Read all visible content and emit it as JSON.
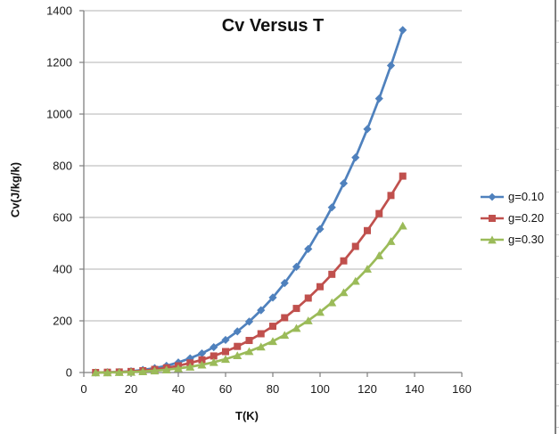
{
  "chart_data": {
    "type": "line",
    "title": "Cv Versus T",
    "xlabel": "T(K)",
    "ylabel": "Cv(J/kg/k)",
    "xlim": [
      0,
      160
    ],
    "ylim": [
      0,
      1400
    ],
    "x_ticks": [
      0,
      20,
      40,
      60,
      80,
      100,
      120,
      140,
      160
    ],
    "y_ticks": [
      0,
      200,
      400,
      600,
      800,
      1000,
      1200,
      1400
    ],
    "grid": "horizontal",
    "legend_position": "right",
    "x": [
      5,
      10,
      15,
      20,
      25,
      30,
      35,
      40,
      45,
      50,
      55,
      60,
      65,
      70,
      75,
      80,
      85,
      90,
      95,
      100,
      105,
      110,
      115,
      120,
      125,
      130,
      135
    ],
    "series": [
      {
        "name": "g=0.10",
        "color": "#4F81BD",
        "marker": "diamond",
        "values": [
          0,
          1,
          2,
          5,
          10,
          17,
          26,
          39,
          55,
          74,
          98,
          126,
          159,
          197,
          241,
          290,
          346,
          409,
          478,
          555,
          639,
          732,
          832,
          942,
          1060,
          1188,
          1325
        ]
      },
      {
        "name": "g=0.20",
        "color": "#C0504D",
        "marker": "square",
        "values": [
          0,
          1,
          2,
          4,
          7,
          12,
          18,
          26,
          37,
          49,
          64,
          81,
          101,
          124,
          150,
          179,
          212,
          248,
          288,
          332,
          380,
          432,
          488,
          549,
          615,
          685,
          760
        ]
      },
      {
        "name": "g=0.30",
        "color": "#9BBB59",
        "marker": "triangle",
        "values": [
          0,
          0,
          1,
          2,
          4,
          7,
          11,
          16,
          22,
          30,
          40,
          52,
          66,
          82,
          100,
          121,
          145,
          172,
          201,
          234,
          271,
          310,
          354,
          401,
          453,
          508,
          568
        ]
      }
    ],
    "style": {
      "gridline_color": "#b3b3b3",
      "axis_color": "#7f7f7f",
      "tick_label_color": "#1a1a1a",
      "background": "#ffffff"
    }
  }
}
